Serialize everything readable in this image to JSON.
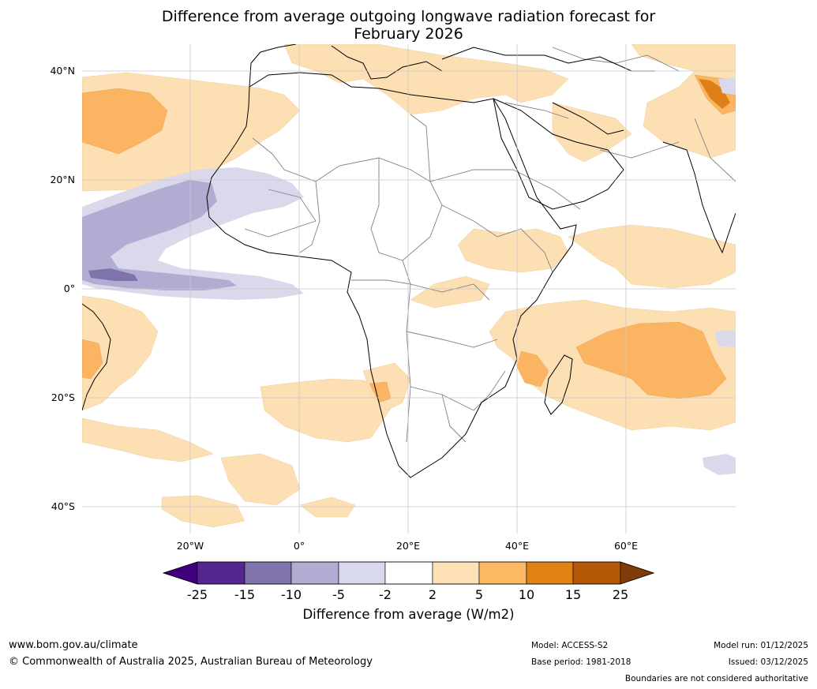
{
  "title": {
    "line1": "Difference from average outgoing longwave radiation forecast for",
    "line2": "February 2026"
  },
  "map": {
    "lat_labels": [
      "40°N",
      "20°N",
      "0°",
      "20°S",
      "40°S"
    ],
    "lon_labels": [
      "20°W",
      "0°",
      "20°E",
      "40°E",
      "60°E"
    ],
    "colors": {
      "water": "#ffffff",
      "neutral": "#ffffff",
      "pos_light": "#fddfb4",
      "pos_mid": "#fbb562",
      "pos_dark": "#de7f19",
      "pos_darker": "#b15a0a",
      "neg_light": "#d9d9eb",
      "neg_mid": "#b1acd2",
      "neg_dark": "#8073ac",
      "coast": "#000000",
      "border": "#808080",
      "grid": "#c8c8c8"
    }
  },
  "colorbar": {
    "ticks": [
      "-25",
      "-15",
      "-10",
      "-5",
      "-2",
      "2",
      "5",
      "10",
      "15",
      "25"
    ],
    "colors": [
      "#3f007d",
      "#54278f",
      "#8073ac",
      "#b2abd2",
      "#d8daeb",
      "#ffffff",
      "#fee0b6",
      "#fdb863",
      "#e08214",
      "#b35806",
      "#7f3b08"
    ],
    "label": "Difference from average (W/m2)"
  },
  "footer": {
    "website": "www.bom.gov.au/climate",
    "copyright": "© Commonwealth of Australia 2025, Australian Bureau of Meteorology",
    "model": "Model: ACCESS-S2",
    "base_period": "Base period: 1981-2018",
    "model_run": "Model run: 01/12/2025",
    "issued": "Issued: 03/12/2025",
    "disclaimer": "Boundaries are not considered authoritative"
  }
}
